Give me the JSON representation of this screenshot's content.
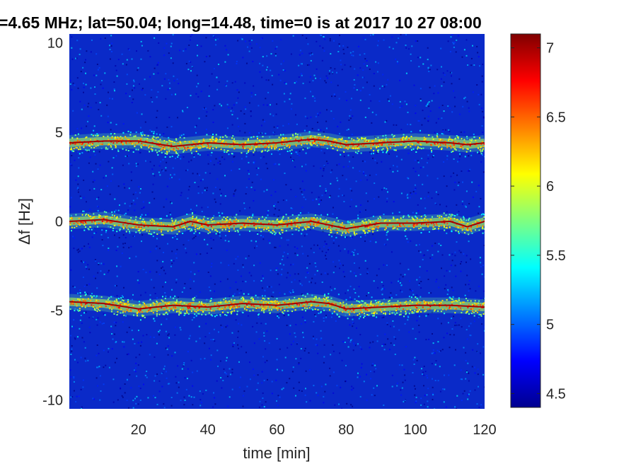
{
  "chart_data": {
    "type": "heatmap",
    "title": "=4.65 MHz;  lat=50.04; long=14.48, time=0 is at 2017 10 27 08:00",
    "xlabel": "time [min]",
    "ylabel": "Δf [Hz]",
    "xlim": [
      0,
      120
    ],
    "ylim": [
      -10.5,
      10.5
    ],
    "x_ticks": [
      20,
      40,
      60,
      80,
      100,
      120
    ],
    "y_ticks": [
      -10,
      -5,
      0,
      5,
      10
    ],
    "colorbar": {
      "colormap": "jet",
      "range": [
        4.4,
        7.1
      ],
      "ticks": [
        4.5,
        5,
        5.5,
        6,
        6.5,
        7
      ],
      "ticklabels": [
        "4.5",
        "5",
        "5.5",
        "6",
        "6.5",
        "7"
      ]
    },
    "background_level": 4.8,
    "series": [
      {
        "x": [
          0,
          10,
          20,
          30,
          40,
          50,
          60,
          70,
          75,
          80,
          90,
          100,
          110,
          115,
          120
        ],
        "y": [
          4.4,
          4.5,
          4.5,
          4.2,
          4.4,
          4.3,
          4.4,
          4.6,
          4.5,
          4.3,
          4.4,
          4.5,
          4.4,
          4.3,
          4.4
        ]
      },
      {
        "x": [
          0,
          10,
          20,
          30,
          35,
          40,
          50,
          60,
          70,
          75,
          80,
          90,
          100,
          110,
          115,
          120
        ],
        "y": [
          0.0,
          0.1,
          -0.2,
          -0.3,
          0.0,
          -0.2,
          -0.1,
          -0.2,
          0.0,
          -0.2,
          -0.4,
          -0.1,
          -0.1,
          0.0,
          -0.3,
          0.0
        ]
      },
      {
        "x": [
          0,
          10,
          20,
          30,
          40,
          50,
          60,
          70,
          75,
          80,
          90,
          100,
          110,
          120
        ],
        "y": [
          -4.5,
          -4.6,
          -4.9,
          -4.7,
          -4.8,
          -4.6,
          -4.7,
          -4.5,
          -4.6,
          -4.9,
          -4.8,
          -4.7,
          -4.7,
          -4.8
        ]
      }
    ]
  }
}
